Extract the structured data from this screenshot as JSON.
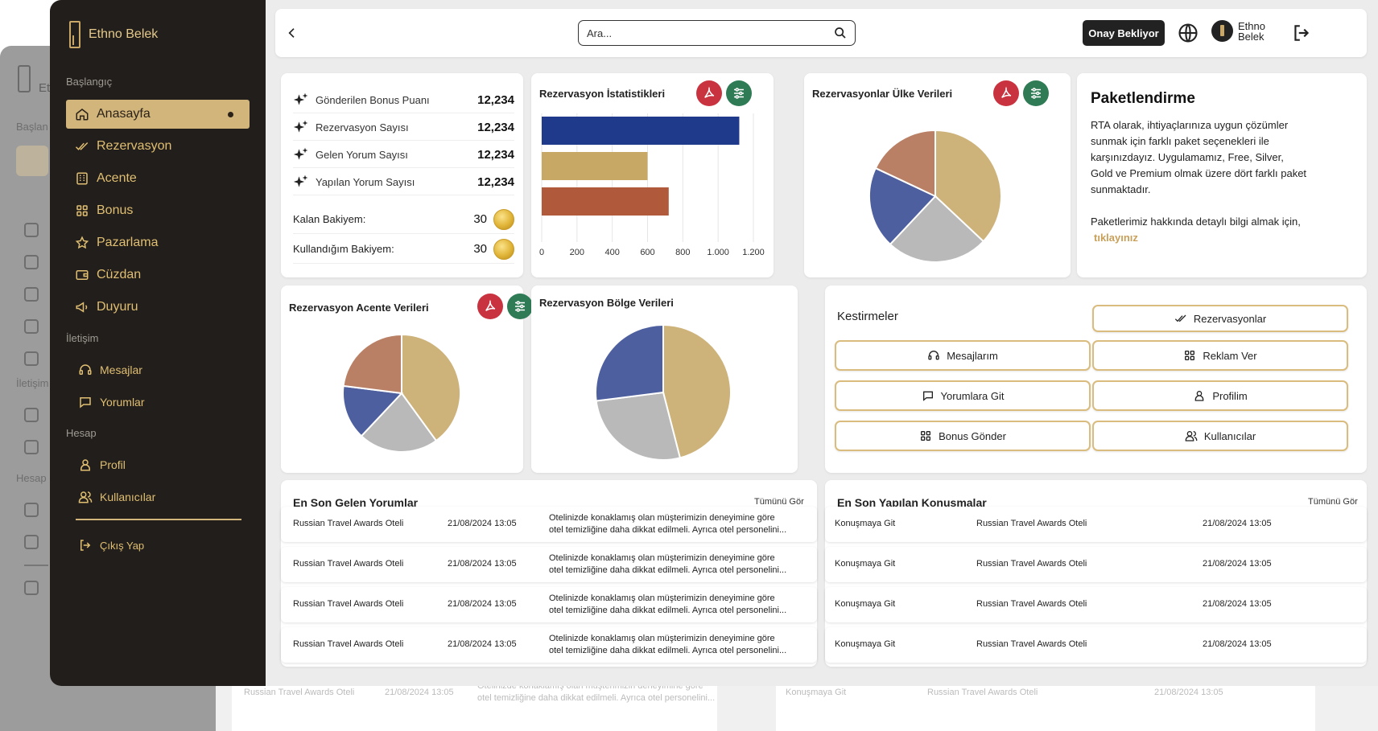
{
  "brand": {
    "name": "Ethno Belek"
  },
  "sidebar": {
    "sections": {
      "start": "Başlangıç",
      "contact": "İletişim",
      "account": "Hesap"
    },
    "items": [
      {
        "label": "Anasayfa",
        "icon": "home-icon"
      },
      {
        "label": "Rezervasyon",
        "icon": "double-check-icon"
      },
      {
        "label": "Acente",
        "icon": "building-icon"
      },
      {
        "label": "Bonus",
        "icon": "grid-icon"
      },
      {
        "label": "Pazarlama",
        "icon": "star-icon"
      },
      {
        "label": "Cüzdan",
        "icon": "wallet-icon"
      },
      {
        "label": "Duyuru",
        "icon": "megaphone-icon"
      },
      {
        "label": "Mesajlar",
        "icon": "headset-icon"
      },
      {
        "label": "Yorumlar",
        "icon": "comment-icon"
      },
      {
        "label": "Profil",
        "icon": "user-icon"
      },
      {
        "label": "Kullanıcılar",
        "icon": "users-icon"
      }
    ],
    "logout": "Çıkış Yap"
  },
  "topbar": {
    "search_placeholder": "Ara...",
    "pending_label": "Onay Bekliyor",
    "user_name": "Ethno Belek"
  },
  "stats": {
    "rows": [
      {
        "label": "Gönderilen Bonus Puanı",
        "value": "12,234"
      },
      {
        "label": "Rezervasyon Sayısı",
        "value": "12,234"
      },
      {
        "label": "Gelen Yorum Sayısı",
        "value": "12,234"
      },
      {
        "label": "Yapılan Yorum Sayısı",
        "value": "12,234"
      }
    ],
    "balances": [
      {
        "label": "Kalan Bakiyem:",
        "value": "30"
      },
      {
        "label": "Kullandığım Bakiyem:",
        "value": "30"
      }
    ]
  },
  "chart_data": [
    {
      "type": "bar",
      "title": "Rezervasyon İstatistikleri",
      "orientation": "horizontal",
      "values": [
        1120,
        600,
        720
      ],
      "colors": [
        "#1f3a8a",
        "#c7a865",
        "#b05a3b"
      ],
      "xlim": [
        0,
        1200
      ],
      "xticks": [
        "0",
        "200",
        "400",
        "600",
        "800",
        "1.000",
        "1.200"
      ],
      "grid": true
    },
    {
      "type": "pie",
      "title": "Rezervasyonlar Ülke Verileri",
      "values": [
        37,
        25,
        20,
        18
      ],
      "colors": [
        "#cdb27a",
        "#b9b9b9",
        "#4d5f9e",
        "#b98066"
      ]
    },
    {
      "type": "pie",
      "title": "Rezervasyon Acente Verileri",
      "values": [
        40,
        22,
        15,
        23
      ],
      "colors": [
        "#cdb27a",
        "#b9b9b9",
        "#4d5f9e",
        "#b98066"
      ]
    },
    {
      "type": "pie",
      "title": "Rezervasyon Bölge Verileri",
      "values": [
        46,
        27,
        27
      ],
      "colors": [
        "#cdb27a",
        "#b9b9b9",
        "#4d5f9e"
      ]
    }
  ],
  "package": {
    "title": "Paketlendirme",
    "text": "RTA olarak, ihtiyaçlarınıza uygun çözümler sunmak için farklı paket seçenekleri ile karşınızdayız. Uygulamamız, Free, Silver, Gold ve Premium olmak üzere dört farklı paket sunmaktadır.",
    "text2": "Paketlerimiz hakkında detaylı bilgi almak için,",
    "link": "tıklayınız"
  },
  "shortcuts": {
    "title": "Kestirmeler",
    "buttons": [
      {
        "label": "Rezervasyonlar",
        "icon": "double-check-icon"
      },
      {
        "label": "Mesajlarım",
        "icon": "headset-icon"
      },
      {
        "label": "Reklam Ver",
        "icon": "grid-icon"
      },
      {
        "label": "Yorumlara Git",
        "icon": "comment-icon"
      },
      {
        "label": "Profilim",
        "icon": "user-icon"
      },
      {
        "label": "Bonus Gönder",
        "icon": "grid-icon"
      },
      {
        "label": "Kullanıcılar",
        "icon": "users-icon"
      }
    ]
  },
  "comments": {
    "title": "En Son Gelen Yorumlar",
    "see_all": "Tümünü Gör",
    "rows": [
      {
        "hotel": "Russian Travel Awards Oteli",
        "date": "21/08/2024 13:05",
        "line1": "Otelinizde konaklamış olan müşterimizin deneyimine göre",
        "line2": "otel temizliğine daha dikkat edilmeli. Ayrıca otel personelini..."
      },
      {
        "hotel": "Russian Travel Awards Oteli",
        "date": "21/08/2024 13:05",
        "line1": "Otelinizde konaklamış olan müşterimizin deneyimine göre",
        "line2": "otel temizliğine daha dikkat edilmeli. Ayrıca otel personelini..."
      },
      {
        "hotel": "Russian Travel Awards Oteli",
        "date": "21/08/2024 13:05",
        "line1": "Otelinizde konaklamış olan müşterimizin deneyimine göre",
        "line2": "otel temizliğine daha dikkat edilmeli. Ayrıca otel personelini..."
      },
      {
        "hotel": "Russian Travel Awards Oteli",
        "date": "21/08/2024 13:05",
        "line1": "Otelinizde konaklamış olan müşterimizin deneyimine göre",
        "line2": "otel temizliğine daha dikkat edilmeli. Ayrıca otel personelini..."
      }
    ]
  },
  "conversations": {
    "title": "En Son Yapılan Konuşmalar",
    "see_all": "Tümünü Gör",
    "rows": [
      {
        "action": "Konuşmaya Git",
        "hotel": "Russian Travel Awards Oteli",
        "date": "21/08/2024 13:05"
      },
      {
        "action": "Konuşmaya Git",
        "hotel": "Russian Travel Awards Oteli",
        "date": "21/08/2024 13:05"
      },
      {
        "action": "Konuşmaya Git",
        "hotel": "Russian Travel Awards Oteli",
        "date": "21/08/2024 13:05"
      },
      {
        "action": "Konuşmaya Git",
        "hotel": "Russian Travel Awards Oteli",
        "date": "21/08/2024 13:05"
      }
    ]
  },
  "ghost": {
    "brand_fragment": "Et",
    "sec_start": "Başlan",
    "sec_contact": "İletişim",
    "sec_account": "Hesap",
    "comment_hotel": "Russian Travel Awards Oteli",
    "comment_date": "21/08/2024 13:05",
    "comment_line1": "Otelinizde konaklamış olan müşterimizin deneyimine göre",
    "comment_line2": "otel temizliğine daha dikkat edilmeli. Ayrıca otel personelini...",
    "conv_action": "Konuşmaya Git",
    "conv_hotel": "Russian Travel Awards Oteli",
    "conv_date": "21/08/2024 13:05"
  }
}
